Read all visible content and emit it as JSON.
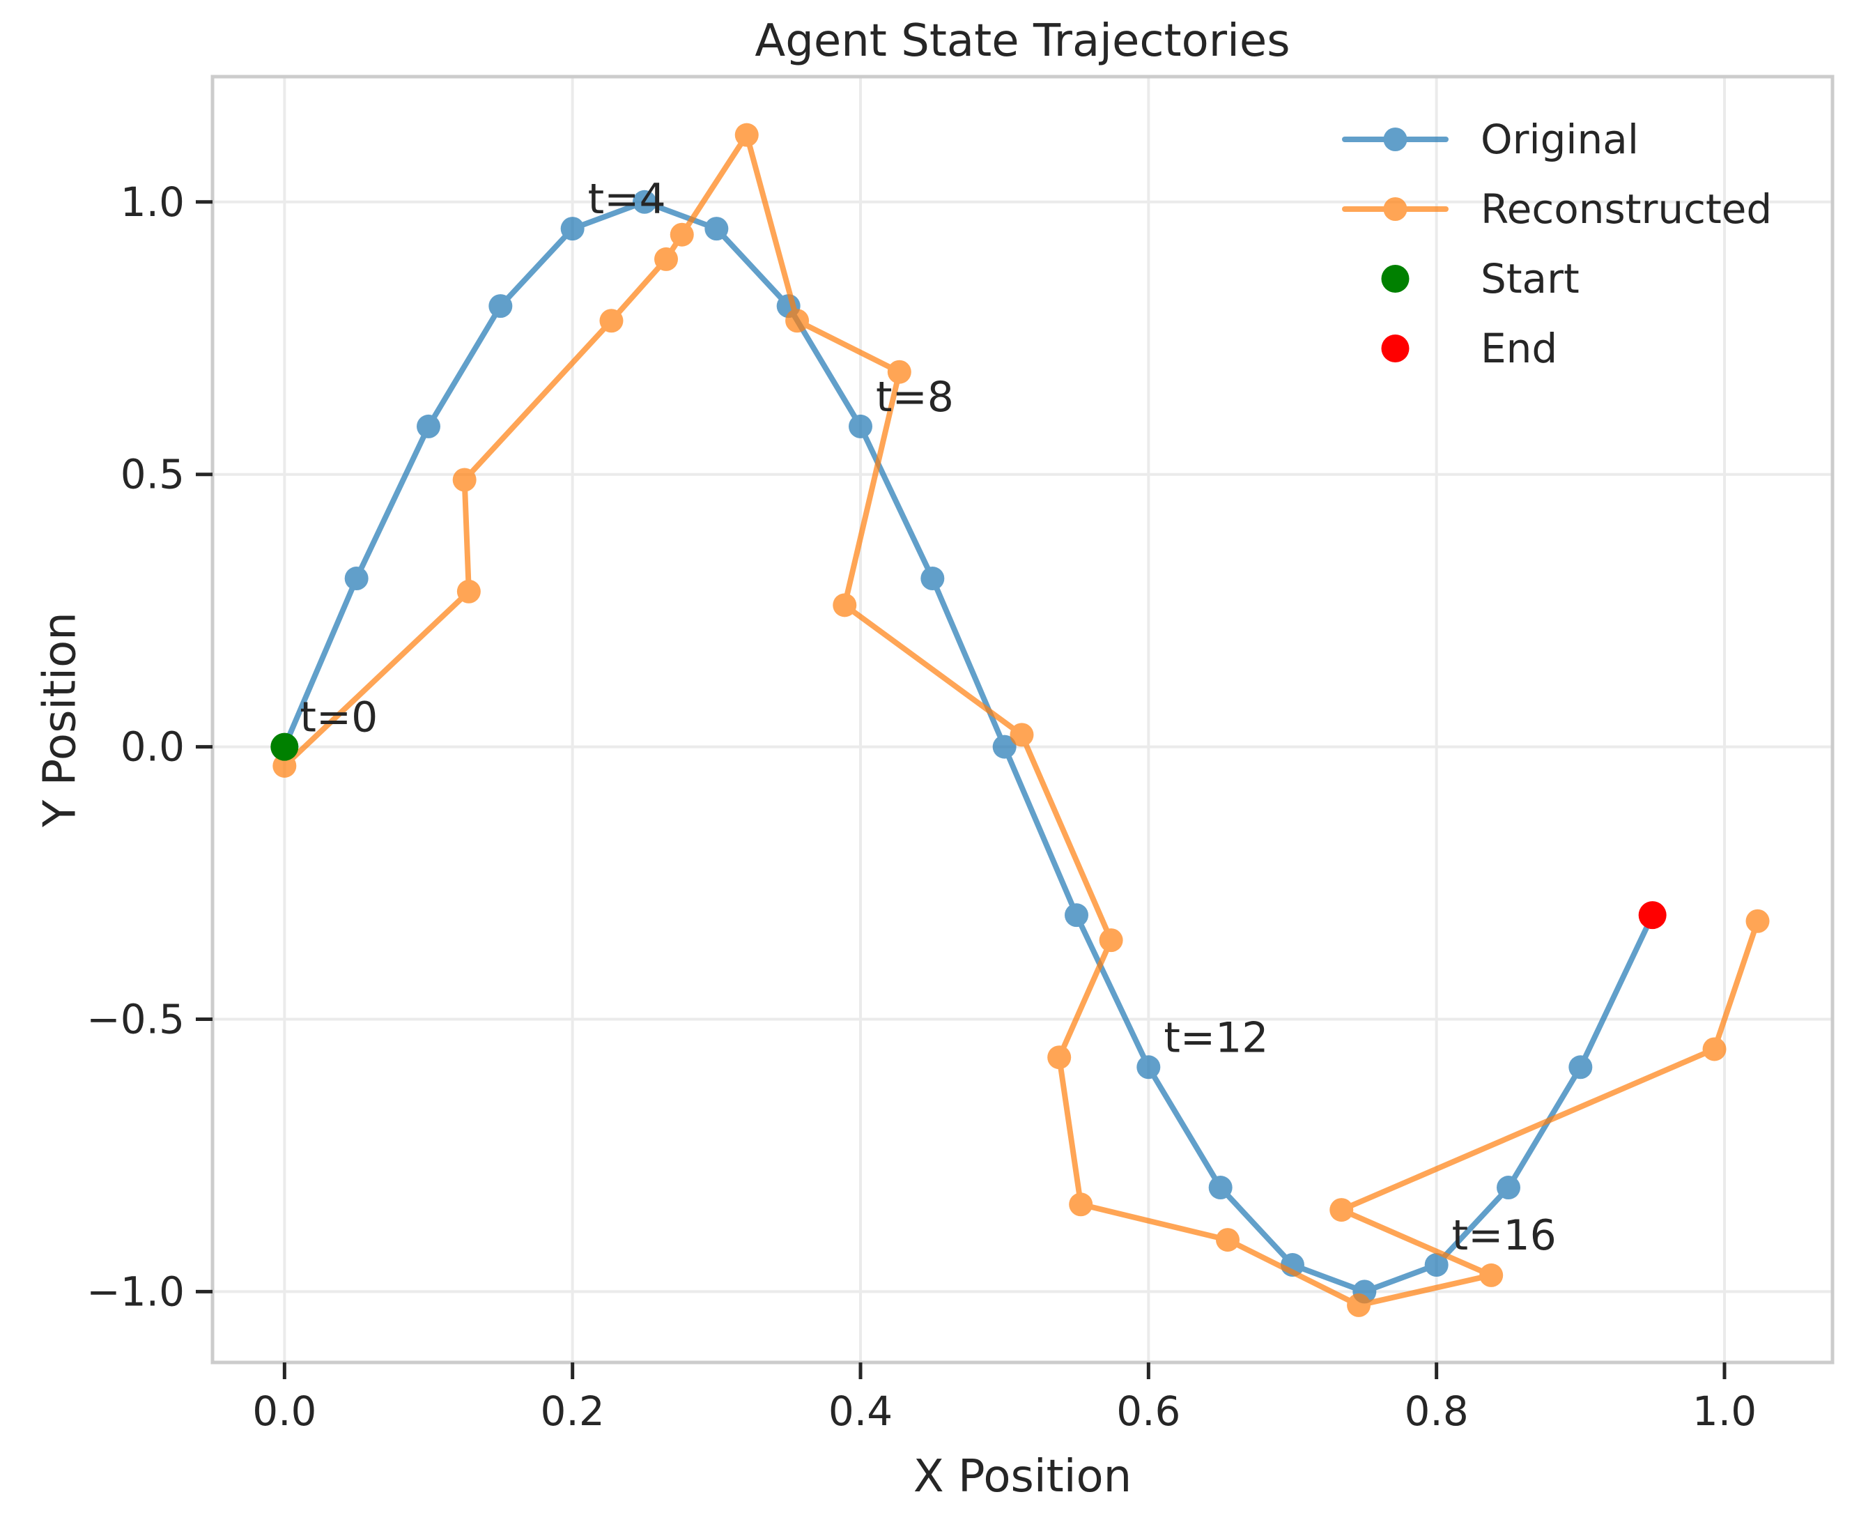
{
  "chart_data": {
    "type": "line",
    "title": "Agent State Trajectories",
    "xlabel": "X Position",
    "ylabel": "Y Position",
    "xlim": [
      -0.05,
      1.075
    ],
    "ylim": [
      -1.13,
      1.23
    ],
    "xticks": [
      0.0,
      0.2,
      0.4,
      0.6,
      0.8,
      1.0
    ],
    "xtick_labels": [
      "0.0",
      "0.2",
      "0.4",
      "0.6",
      "0.8",
      "1.0"
    ],
    "yticks": [
      -1.0,
      -0.5,
      0.0,
      0.5,
      1.0
    ],
    "ytick_labels": [
      "−1.0",
      "−0.5",
      "0.0",
      "0.5",
      "1.0"
    ],
    "grid": true,
    "legend_position": "top-right",
    "series": [
      {
        "name": "Original",
        "color": "#1f77b4",
        "marker": "circle",
        "x": [
          0.0,
          0.05,
          0.1,
          0.15,
          0.2,
          0.25,
          0.3,
          0.35,
          0.4,
          0.45,
          0.5,
          0.55,
          0.6,
          0.65,
          0.7,
          0.75,
          0.8,
          0.85,
          0.9,
          0.95
        ],
        "y": [
          0.0,
          0.309,
          0.588,
          0.809,
          0.951,
          1.0,
          0.951,
          0.809,
          0.588,
          0.309,
          0.0,
          -0.309,
          -0.588,
          -0.809,
          -0.951,
          -1.0,
          -0.951,
          -0.809,
          -0.588,
          -0.309
        ]
      },
      {
        "name": "Reconstructed",
        "color": "#ff7f0e",
        "marker": "circle",
        "x": [
          0.0,
          0.128,
          0.125,
          0.227,
          0.265,
          0.276,
          0.321,
          0.356,
          0.427,
          0.389,
          0.512,
          0.574,
          0.538,
          0.553,
          0.655,
          0.746,
          0.838,
          0.734,
          0.993,
          1.023
        ],
        "y": [
          -0.035,
          0.285,
          0.49,
          0.782,
          0.895,
          0.94,
          1.123,
          0.782,
          0.688,
          0.26,
          0.022,
          -0.355,
          -0.57,
          -0.84,
          -0.905,
          -1.025,
          -0.97,
          -0.85,
          -0.555,
          -0.32
        ]
      }
    ],
    "scatter": [
      {
        "name": "Start",
        "color": "#008000",
        "x": 0.0,
        "y": 0.0
      },
      {
        "name": "End",
        "color": "#ff0000",
        "x": 0.95,
        "y": -0.309
      }
    ],
    "annotations": [
      {
        "text": "t=0",
        "x": 0.0,
        "y": 0.0
      },
      {
        "text": "t=4",
        "x": 0.2,
        "y": 0.951
      },
      {
        "text": "t=8",
        "x": 0.4,
        "y": 0.588
      },
      {
        "text": "t=12",
        "x": 0.6,
        "y": -0.588
      },
      {
        "text": "t=16",
        "x": 0.8,
        "y": -0.951
      }
    ]
  }
}
